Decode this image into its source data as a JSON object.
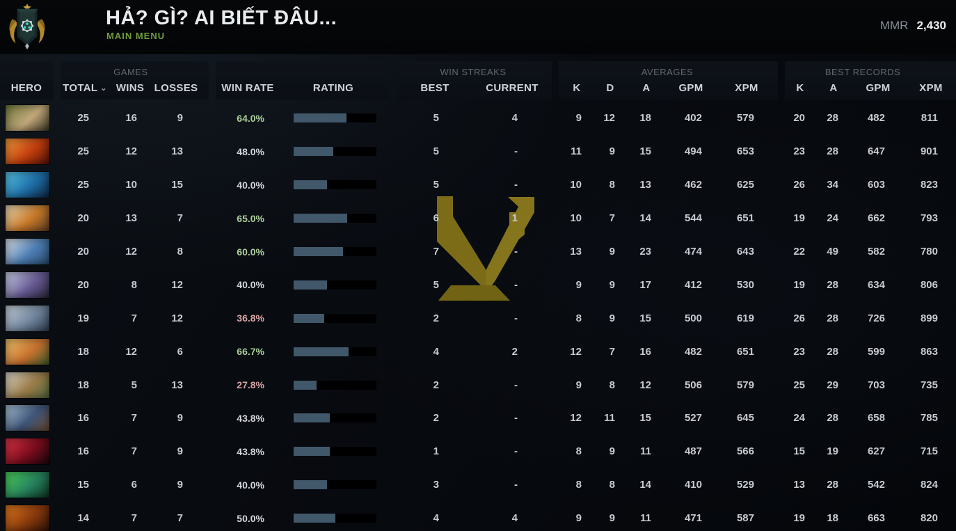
{
  "header": {
    "player_name": "HẢ? GÌ? AI BIẾT ĐÂU...",
    "nav_label": "MAIN MENU",
    "mmr_label": "MMR",
    "mmr_value": "2,430",
    "rank_badge": "guardian-medal"
  },
  "colors": {
    "accent_green": "#6f9e3b",
    "win_good": "#abcf9c",
    "win_neutral": "#d3d7db",
    "win_bad": "#d8a5a5",
    "rating_fill": "#41586a",
    "rating_track": "#000000",
    "watermark_gold": "#8a7820"
  },
  "table": {
    "groups": {
      "games": "GAMES",
      "win_streaks": "WIN STREAKS",
      "averages": "AVERAGES",
      "best_records": "BEST RECORDS"
    },
    "columns": {
      "hero": "HERO",
      "total": "TOTAL",
      "wins": "WINS",
      "losses": "LOSSES",
      "win_rate": "WIN RATE",
      "rating": "RATING",
      "best": "BEST",
      "current": "CURRENT",
      "k": "K",
      "d": "D",
      "a": "A",
      "gpm": "GPM",
      "xpm": "XPM",
      "rec_k": "K",
      "rec_a": "A",
      "rec_gpm": "GPM",
      "rec_xpm": "XPM"
    },
    "rows": [
      {
        "hero": "pudge",
        "portrait": [
          "#6f7a3c",
          "#c2a87b",
          "#3c3520"
        ],
        "total": "25",
        "wins": "16",
        "losses": "9",
        "win_rate": "64.0%",
        "win_rate_pct": 64.0,
        "rate_tone": "good",
        "best": "5",
        "current": "4",
        "avg_k": "9",
        "avg_d": "12",
        "avg_a": "18",
        "avg_gpm": "402",
        "avg_xpm": "579",
        "rec_k": "20",
        "rec_a": "28",
        "rec_gpm": "482",
        "rec_xpm": "811"
      },
      {
        "hero": "ember-spirit",
        "portrait": [
          "#f59b3c",
          "#c23e0e",
          "#551004"
        ],
        "total": "25",
        "wins": "12",
        "losses": "13",
        "win_rate": "48.0%",
        "win_rate_pct": 48.0,
        "rate_tone": "neutral",
        "best": "5",
        "current": "-",
        "avg_k": "11",
        "avg_d": "9",
        "avg_a": "15",
        "avg_gpm": "494",
        "avg_xpm": "653",
        "rec_k": "23",
        "rec_a": "28",
        "rec_gpm": "647",
        "rec_xpm": "901"
      },
      {
        "hero": "storm-spirit",
        "portrait": [
          "#57c8e8",
          "#1f6fa8",
          "#0d2440"
        ],
        "total": "25",
        "wins": "10",
        "losses": "15",
        "win_rate": "40.0%",
        "win_rate_pct": 40.0,
        "rate_tone": "neutral",
        "best": "5",
        "current": "-",
        "avg_k": "10",
        "avg_d": "8",
        "avg_a": "13",
        "avg_gpm": "462",
        "avg_xpm": "625",
        "rec_k": "26",
        "rec_a": "34",
        "rec_gpm": "603",
        "rec_xpm": "823"
      },
      {
        "hero": "juggernaut",
        "portrait": [
          "#e8d9b4",
          "#c97b2a",
          "#5f3d22"
        ],
        "total": "20",
        "wins": "13",
        "losses": "7",
        "win_rate": "65.0%",
        "win_rate_pct": 65.0,
        "rate_tone": "good",
        "best": "6",
        "current": "1",
        "avg_k": "10",
        "avg_d": "7",
        "avg_a": "14",
        "avg_gpm": "544",
        "avg_xpm": "651",
        "rec_k": "19",
        "rec_a": "24",
        "rec_gpm": "662",
        "rec_xpm": "793"
      },
      {
        "hero": "zeus",
        "portrait": [
          "#dfe5ea",
          "#4f7fb5",
          "#27496e"
        ],
        "total": "20",
        "wins": "12",
        "losses": "8",
        "win_rate": "60.0%",
        "win_rate_pct": 60.0,
        "rate_tone": "good",
        "best": "7",
        "current": "-",
        "avg_k": "13",
        "avg_d": "9",
        "avg_a": "23",
        "avg_gpm": "474",
        "avg_xpm": "643",
        "rec_k": "22",
        "rec_a": "49",
        "rec_gpm": "582",
        "rec_xpm": "780"
      },
      {
        "hero": "mirana",
        "portrait": [
          "#cbd3ea",
          "#6a5d96",
          "#2a2438"
        ],
        "total": "20",
        "wins": "8",
        "losses": "12",
        "win_rate": "40.0%",
        "win_rate_pct": 40.0,
        "rate_tone": "neutral",
        "best": "5",
        "current": "-",
        "avg_k": "9",
        "avg_d": "9",
        "avg_a": "17",
        "avg_gpm": "412",
        "avg_xpm": "530",
        "rec_k": "19",
        "rec_a": "28",
        "rec_gpm": "634",
        "rec_xpm": "806"
      },
      {
        "hero": "sven",
        "portrait": [
          "#c7d0da",
          "#7488a0",
          "#2e3c50"
        ],
        "total": "19",
        "wins": "7",
        "losses": "12",
        "win_rate": "36.8%",
        "win_rate_pct": 36.8,
        "rate_tone": "bad",
        "best": "2",
        "current": "-",
        "avg_k": "8",
        "avg_d": "9",
        "avg_a": "15",
        "avg_gpm": "500",
        "avg_xpm": "619",
        "rec_k": "26",
        "rec_a": "28",
        "rec_gpm": "726",
        "rec_xpm": "899"
      },
      {
        "hero": "windranger",
        "portrait": [
          "#f0c46a",
          "#c8722f",
          "#3f5c2a"
        ],
        "total": "18",
        "wins": "12",
        "losses": "6",
        "win_rate": "66.7%",
        "win_rate_pct": 66.7,
        "rate_tone": "good",
        "best": "4",
        "current": "2",
        "avg_k": "12",
        "avg_d": "7",
        "avg_a": "16",
        "avg_gpm": "482",
        "avg_xpm": "651",
        "rec_k": "23",
        "rec_a": "28",
        "rec_gpm": "599",
        "rec_xpm": "863"
      },
      {
        "hero": "sniper",
        "portrait": [
          "#d9d4c8",
          "#9c7d4a",
          "#50683a"
        ],
        "total": "18",
        "wins": "5",
        "losses": "13",
        "win_rate": "27.8%",
        "win_rate_pct": 27.8,
        "rate_tone": "bad",
        "best": "2",
        "current": "-",
        "avg_k": "9",
        "avg_d": "8",
        "avg_a": "12",
        "avg_gpm": "506",
        "avg_xpm": "579",
        "rec_k": "25",
        "rec_a": "29",
        "rec_gpm": "703",
        "rec_xpm": "735"
      },
      {
        "hero": "kunkka",
        "portrait": [
          "#a8c4d4",
          "#3f557a",
          "#6b4a2e"
        ],
        "total": "16",
        "wins": "7",
        "losses": "9",
        "win_rate": "43.8%",
        "win_rate_pct": 43.8,
        "rate_tone": "neutral",
        "best": "2",
        "current": "-",
        "avg_k": "12",
        "avg_d": "11",
        "avg_a": "15",
        "avg_gpm": "527",
        "avg_xpm": "645",
        "rec_k": "24",
        "rec_a": "28",
        "rec_gpm": "658",
        "rec_xpm": "785"
      },
      {
        "hero": "shadow-fiend",
        "portrait": [
          "#e03548",
          "#7a0d1d",
          "#1c060c"
        ],
        "total": "16",
        "wins": "7",
        "losses": "9",
        "win_rate": "43.8%",
        "win_rate_pct": 43.8,
        "rate_tone": "neutral",
        "best": "1",
        "current": "-",
        "avg_k": "8",
        "avg_d": "9",
        "avg_a": "11",
        "avg_gpm": "487",
        "avg_xpm": "566",
        "rec_k": "15",
        "rec_a": "19",
        "rec_gpm": "627",
        "rec_xpm": "715"
      },
      {
        "hero": "pugna",
        "portrait": [
          "#4ad05a",
          "#27835e",
          "#0d3322"
        ],
        "total": "15",
        "wins": "6",
        "losses": "9",
        "win_rate": "40.0%",
        "win_rate_pct": 40.0,
        "rate_tone": "neutral",
        "best": "3",
        "current": "-",
        "avg_k": "8",
        "avg_d": "8",
        "avg_a": "14",
        "avg_gpm": "410",
        "avg_xpm": "529",
        "rec_k": "13",
        "rec_a": "28",
        "rec_gpm": "542",
        "rec_xpm": "824"
      },
      {
        "hero": "chaos-knight",
        "portrait": [
          "#e07a1e",
          "#8a3a0c",
          "#2e1206"
        ],
        "total": "14",
        "wins": "7",
        "losses": "7",
        "win_rate": "50.0%",
        "win_rate_pct": 50.0,
        "rate_tone": "neutral",
        "best": "4",
        "current": "4",
        "avg_k": "9",
        "avg_d": "9",
        "avg_a": "11",
        "avg_gpm": "471",
        "avg_xpm": "587",
        "rec_k": "19",
        "rec_a": "18",
        "rec_gpm": "663",
        "rec_xpm": "820"
      }
    ]
  }
}
